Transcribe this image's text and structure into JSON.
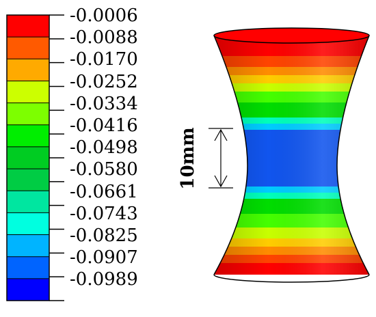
{
  "legend": {
    "labels": [
      "-0.0006",
      "-0.0088",
      "-0.0170",
      "-0.0252",
      "-0.0334",
      "-0.0416",
      "-0.0498",
      "-0.0580",
      "-0.0661",
      "-0.0743",
      "-0.0825",
      "-0.0907",
      "-0.0989"
    ],
    "colors": [
      "#ff0000",
      "#ff5a00",
      "#ffaa00",
      "#ccff00",
      "#7dff00",
      "#00ee00",
      "#00cc22",
      "#00cc44",
      "#00e6a0",
      "#00ffe0",
      "#00b4ff",
      "#0064ff",
      "#0000ff"
    ]
  },
  "specimen": {
    "dimension_label": "10mm",
    "band_colors": [
      "#ff0000",
      "#ff4400",
      "#ff8c00",
      "#ffcc00",
      "#c8ff00",
      "#44ff00",
      "#00dd00",
      "#00ffbb",
      "#00ccff",
      "#1155ee",
      "#00ccff",
      "#00ffbb",
      "#00dd00",
      "#44ff00",
      "#c8ff00",
      "#ffcc00",
      "#ff8c00",
      "#ff4400",
      "#ff0000"
    ]
  }
}
